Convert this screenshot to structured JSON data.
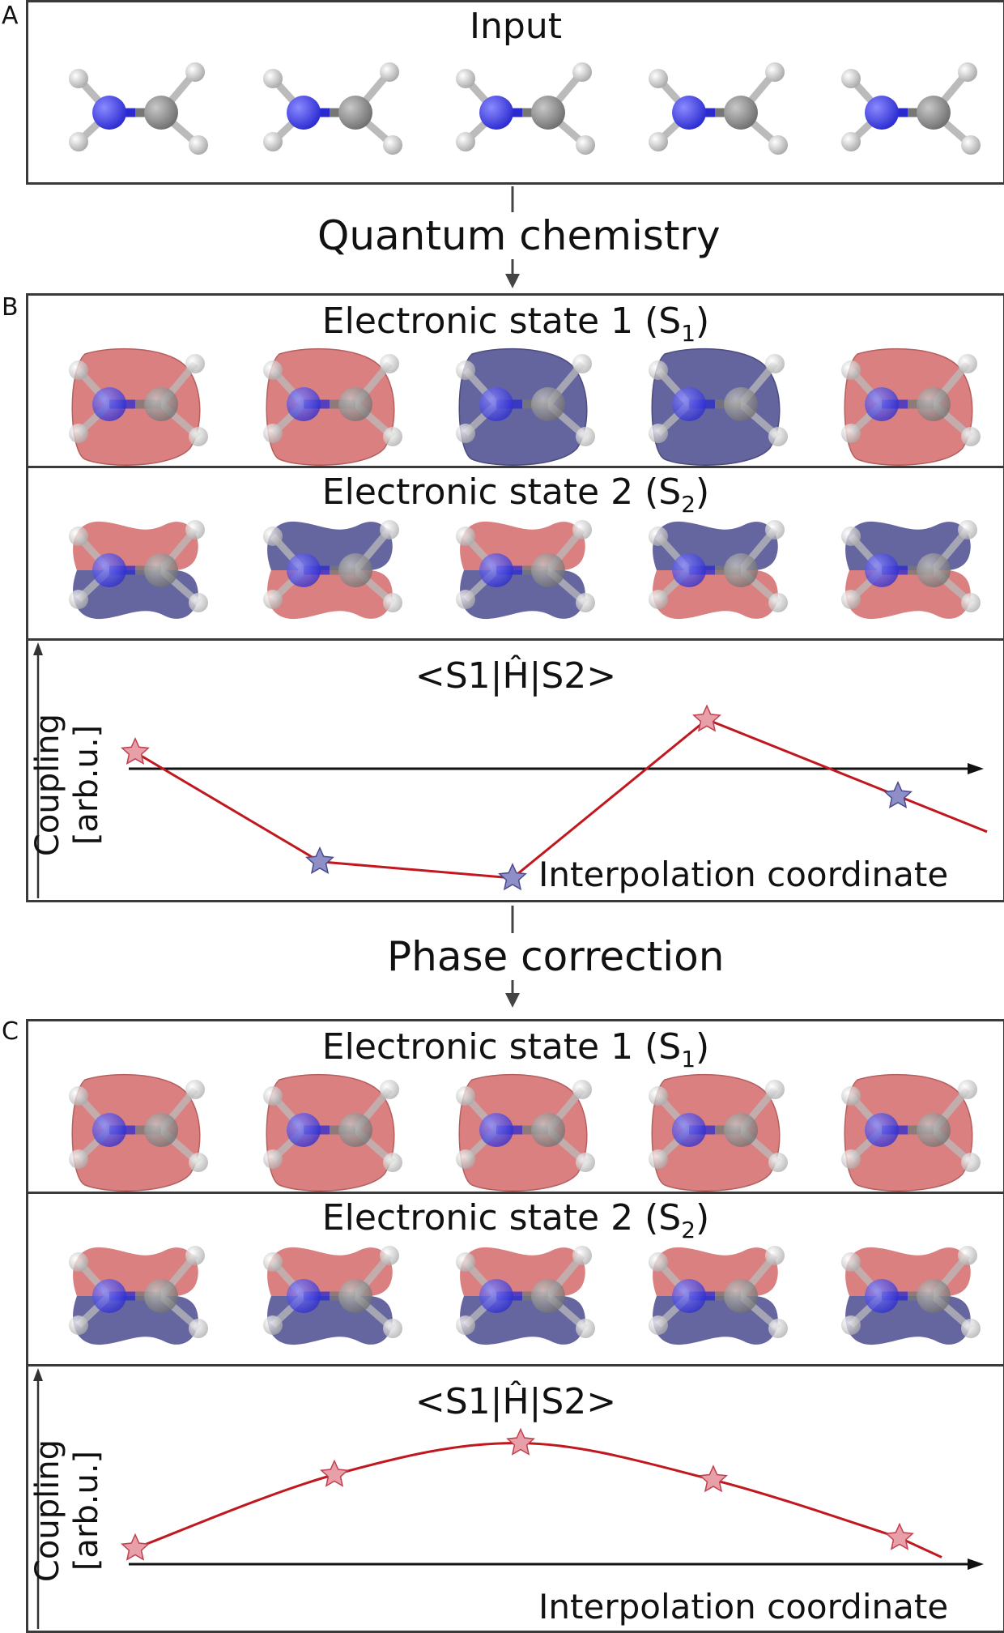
{
  "panels": {
    "a": {
      "letter": "A",
      "title": "Input",
      "molecules": [
        "methanimine-ball-stick",
        "methanimine-ball-stick",
        "methanimine-ball-stick",
        "methanimine-ball-stick",
        "methanimine-ball-stick"
      ]
    },
    "flow1": {
      "label": "Quantum chemistry"
    },
    "b": {
      "letter": "B",
      "state1": {
        "title": "Electronic state 1 (S",
        "sub": "1",
        "close": ")",
        "phases": [
          "red",
          "red",
          "blue",
          "blue",
          "red"
        ]
      },
      "state2": {
        "title": "Electronic state 2 (S",
        "sub": "2",
        "close": ")",
        "phases": [
          "red-top",
          "blue-top",
          "red-top",
          "blue-top",
          "blue-top"
        ]
      },
      "plot": {
        "title": "<S1|Ĥ|S2>",
        "xlabel": "Interpolation coordinate",
        "ylabel_line1": "Coupling",
        "ylabel_line2": "[arb.u.]"
      }
    },
    "flow2": {
      "label": "Phase correction"
    },
    "c": {
      "letter": "C",
      "state1": {
        "title": "Electronic state 1 (S",
        "sub": "1",
        "close": ")",
        "phases": [
          "red",
          "red",
          "red",
          "red",
          "red"
        ]
      },
      "state2": {
        "title": "Electronic state 2 (S",
        "sub": "2",
        "close": ")",
        "phases": [
          "red-top",
          "red-top",
          "red-top",
          "red-top",
          "red-top"
        ]
      },
      "plot": {
        "title": "<S1|Ĥ|S2>",
        "xlabel": "Interpolation coordinate",
        "ylabel_line1": "Coupling",
        "ylabel_line2": "[arb.u.]"
      }
    }
  },
  "chart_data": [
    {
      "type": "line",
      "title": "<S1|Ĥ|S2>",
      "xlabel": "Interpolation coordinate",
      "ylabel": "Coupling [arb.u.]",
      "x": [
        1,
        2,
        3,
        4,
        5
      ],
      "values": [
        0.15,
        -0.85,
        -1.0,
        0.45,
        -0.25
      ],
      "point_colors": [
        "#e8a0a8",
        "#8f8fc8",
        "#8f8fc8",
        "#e8a0a8",
        "#8f8fc8"
      ],
      "line_color": "#c0181e"
    },
    {
      "type": "line",
      "title": "<S1|Ĥ|S2>",
      "xlabel": "Interpolation coordinate",
      "ylabel": "Coupling [arb.u.]",
      "x": [
        1,
        2,
        3,
        4,
        5
      ],
      "values": [
        0.15,
        0.85,
        1.15,
        0.8,
        0.25
      ],
      "point_colors": [
        "#e8a0a8",
        "#e8a0a8",
        "#e8a0a8",
        "#e8a0a8",
        "#e8a0a8"
      ],
      "line_color": "#c0181e"
    }
  ],
  "colors": {
    "nitrogen": "#2a2ad0",
    "carbon": "#6e6e6e",
    "hydrogen": "#e8e8e8",
    "lobe_red": "#d46a6a",
    "lobe_blue": "#4a4a8e"
  }
}
